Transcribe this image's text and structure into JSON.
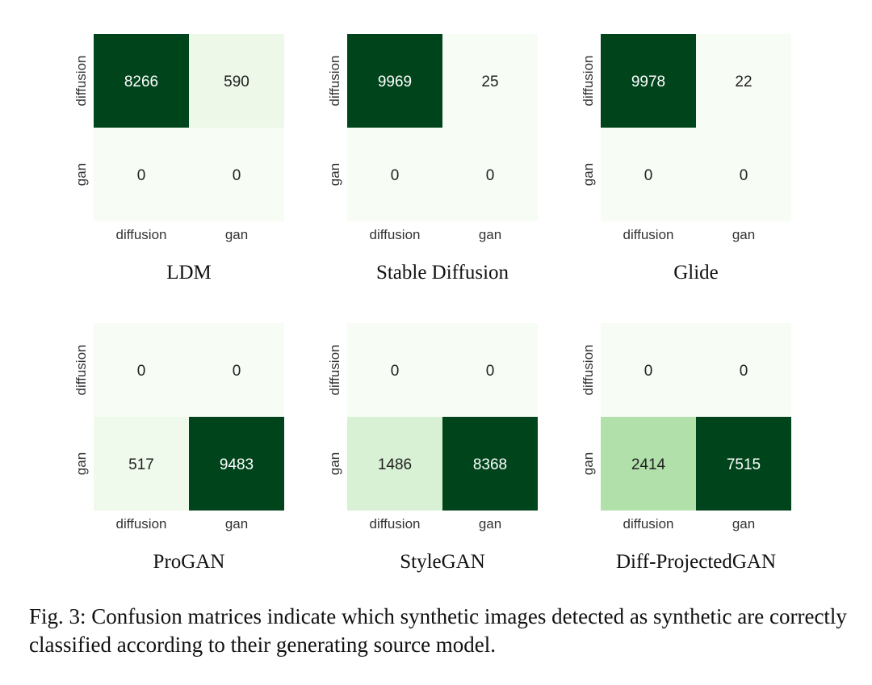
{
  "chart_data": [
    {
      "type": "heatmap",
      "title": "LDM",
      "row_labels": [
        "diffusion",
        "gan"
      ],
      "col_labels": [
        "diffusion",
        "gan"
      ],
      "values": [
        [
          8266,
          590
        ],
        [
          0,
          0
        ]
      ]
    },
    {
      "type": "heatmap",
      "title": "Stable Diffusion",
      "row_labels": [
        "diffusion",
        "gan"
      ],
      "col_labels": [
        "diffusion",
        "gan"
      ],
      "values": [
        [
          9969,
          25
        ],
        [
          0,
          0
        ]
      ]
    },
    {
      "type": "heatmap",
      "title": "Glide",
      "row_labels": [
        "diffusion",
        "gan"
      ],
      "col_labels": [
        "diffusion",
        "gan"
      ],
      "values": [
        [
          9978,
          22
        ],
        [
          0,
          0
        ]
      ]
    },
    {
      "type": "heatmap",
      "title": "ProGAN",
      "row_labels": [
        "diffusion",
        "gan"
      ],
      "col_labels": [
        "diffusion",
        "gan"
      ],
      "values": [
        [
          0,
          0
        ],
        [
          517,
          9483
        ]
      ]
    },
    {
      "type": "heatmap",
      "title": "StyleGAN",
      "row_labels": [
        "diffusion",
        "gan"
      ],
      "col_labels": [
        "diffusion",
        "gan"
      ],
      "values": [
        [
          0,
          0
        ],
        [
          1486,
          8368
        ]
      ]
    },
    {
      "type": "heatmap",
      "title": "Diff-ProjectedGAN",
      "row_labels": [
        "diffusion",
        "gan"
      ],
      "col_labels": [
        "diffusion",
        "gan"
      ],
      "values": [
        [
          0,
          0
        ],
        [
          2414,
          7515
        ]
      ]
    }
  ],
  "caption": "Fig. 3: Confusion matrices indicate which synthetic images detected as synthetic are correctly classified according to their generating source model.",
  "colors": {
    "low": "#f7fcf5",
    "high": "#00441b",
    "text_dark": "#222222",
    "text_light": "#ffffff"
  }
}
